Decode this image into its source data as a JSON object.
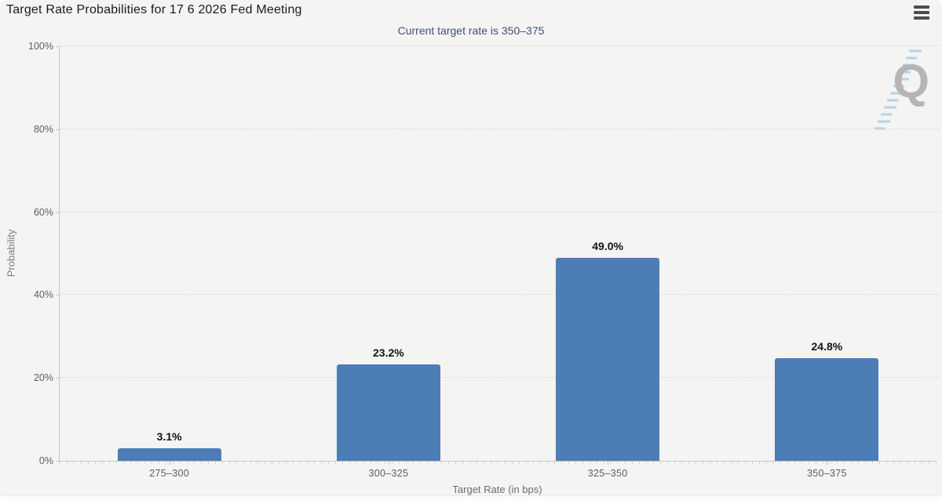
{
  "panel": {
    "watermark_letter": "Q"
  },
  "chart_data": {
    "type": "bar",
    "title": "Target Rate Probabilities for 17 6 2026 Fed Meeting",
    "subtitle": "Current target rate is 350–375",
    "xlabel": "Target Rate (in bps)",
    "ylabel": "Probability",
    "categories": [
      "275–300",
      "300–325",
      "325–350",
      "350–375"
    ],
    "values": [
      3.1,
      23.2,
      49.0,
      24.8
    ],
    "value_labels": [
      "3.1%",
      "23.2%",
      "49.0%",
      "24.8%"
    ],
    "ylim": [
      0,
      100
    ],
    "ytick_values": [
      0,
      20,
      40,
      60,
      80,
      100
    ],
    "ytick_labels": [
      "0%",
      "20%",
      "40%",
      "60%",
      "80%",
      "100%"
    ],
    "grid": "horizontal-dotted",
    "legend": "none",
    "bar_color": "#4c7db7",
    "label_color": "#141414",
    "subtitle_color": "#40507e"
  }
}
